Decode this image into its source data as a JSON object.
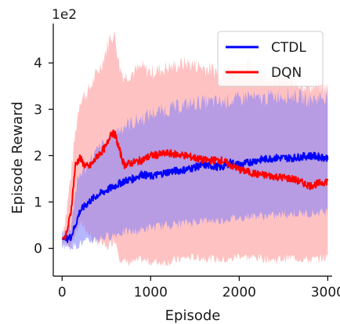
{
  "chart_data": {
    "type": "line",
    "title": "",
    "xlabel": "Episode",
    "ylabel": "Episode Reward",
    "y_scale_label": "1e2",
    "xlim": [
      -100,
      3050
    ],
    "ylim": [
      -0.6,
      4.85
    ],
    "xticks": [
      0,
      1000,
      2000,
      3000
    ],
    "xtick_labels": [
      "0",
      "1000",
      "2000",
      "3000"
    ],
    "yticks": [
      0,
      1,
      2,
      3,
      4
    ],
    "ytick_labels": [
      "0",
      "1",
      "2",
      "3",
      "4"
    ],
    "grid": false,
    "legend_position": "top-right",
    "series": [
      {
        "name": "CTDL",
        "color": "#0000ff",
        "band_color": "#7b7bff",
        "x": [
          0,
          50,
          100,
          150,
          200,
          300,
          400,
          500,
          600,
          700,
          800,
          900,
          1000,
          1200,
          1400,
          1600,
          1800,
          1900,
          2000,
          2100,
          2200,
          2400,
          2600,
          2800,
          3000
        ],
        "mean": [
          0.2,
          0.2,
          0.25,
          0.5,
          0.8,
          1.0,
          1.15,
          1.25,
          1.35,
          1.45,
          1.5,
          1.6,
          1.55,
          1.65,
          1.7,
          1.8,
          1.75,
          1.85,
          1.8,
          1.85,
          1.9,
          1.95,
          1.95,
          2.0,
          1.95
        ],
        "upper": [
          0.3,
          0.35,
          0.5,
          1.2,
          1.6,
          1.85,
          2.1,
          2.3,
          2.5,
          2.65,
          2.7,
          2.8,
          2.9,
          3.0,
          3.1,
          3.15,
          3.15,
          3.2,
          3.2,
          3.3,
          3.2,
          3.3,
          3.3,
          3.2,
          3.3
        ],
        "lower": [
          0.1,
          0.05,
          0.05,
          0.05,
          0.1,
          0.15,
          0.2,
          0.25,
          0.3,
          0.35,
          0.35,
          0.4,
          0.45,
          0.5,
          0.55,
          0.6,
          0.6,
          0.65,
          0.65,
          0.7,
          0.7,
          0.7,
          0.75,
          0.75,
          0.8
        ]
      },
      {
        "name": "DQN",
        "color": "#ff0000",
        "band_color": "#ffa8a8",
        "x": [
          0,
          50,
          100,
          150,
          200,
          250,
          300,
          350,
          400,
          450,
          500,
          550,
          600,
          650,
          700,
          800,
          900,
          1000,
          1200,
          1400,
          1600,
          1800,
          1900,
          2000,
          2100,
          2200,
          2400,
          2600,
          2800,
          3000
        ],
        "mean": [
          0.2,
          0.3,
          0.8,
          1.8,
          1.95,
          1.8,
          1.75,
          1.85,
          2.0,
          2.1,
          2.2,
          2.5,
          2.45,
          2.1,
          1.8,
          1.85,
          1.9,
          2.0,
          2.05,
          2.0,
          1.9,
          1.9,
          1.8,
          1.7,
          1.65,
          1.6,
          1.55,
          1.5,
          1.35,
          1.45
        ],
        "upper": [
          0.3,
          0.8,
          1.6,
          2.5,
          3.2,
          3.3,
          3.4,
          3.6,
          3.8,
          4.0,
          4.3,
          4.6,
          4.55,
          3.9,
          3.7,
          3.8,
          3.9,
          3.8,
          3.9,
          4.0,
          3.9,
          3.8,
          3.85,
          3.9,
          3.95,
          3.8,
          3.7,
          3.6,
          3.5,
          3.45
        ],
        "lower": [
          0.1,
          0.1,
          0.1,
          0.3,
          0.5,
          0.5,
          0.3,
          0.2,
          0.15,
          0.1,
          0.0,
          0.1,
          0.2,
          -0.2,
          -0.3,
          -0.3,
          -0.25,
          -0.3,
          -0.3,
          -0.2,
          -0.2,
          -0.25,
          -0.25,
          -0.15,
          -0.2,
          -0.2,
          -0.25,
          -0.2,
          -0.25,
          -0.2
        ]
      }
    ]
  }
}
